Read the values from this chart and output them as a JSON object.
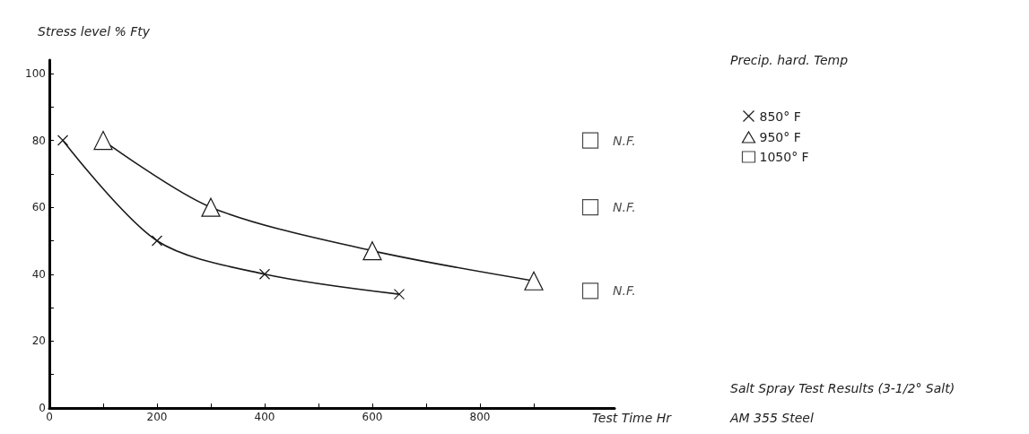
{
  "chart_data": {
    "type": "line",
    "ylabel": "Stress level % Fty",
    "xlabel": "Test Time Hr",
    "legend_title": "Precip. hard. Temp",
    "legend": "top right",
    "grid": false,
    "line_style": "solid",
    "annotations": [
      "Salt Spray Test Results (3-1/2° Salt)",
      "AM 355 Steel"
    ],
    "xlim": [
      0,
      1050
    ],
    "xticks": [
      0,
      {
        "value": 100,
        "label": null
      },
      200,
      {
        "value": 300,
        "label": null
      },
      400,
      {
        "value": 500,
        "label": null
      },
      600,
      {
        "value": 700,
        "label": null
      },
      800,
      {
        "value": 900,
        "label": null
      }
    ],
    "ylim": [
      0,
      104
    ],
    "yticks": [
      0,
      {
        "value": 10,
        "label": null
      },
      20,
      {
        "value": 30,
        "label": null
      },
      40,
      {
        "value": 50,
        "label": null
      },
      60,
      {
        "value": 70,
        "label": null
      },
      80,
      {
        "value": 90,
        "label": null
      },
      100
    ],
    "series": [
      {
        "name": "850° F",
        "color": "#1a1a1a",
        "marker": "cross",
        "x": [
          25,
          200,
          400,
          650
        ],
        "values": [
          80,
          50,
          40,
          34
        ]
      },
      {
        "name": "950° F",
        "color": "#1a1a1a",
        "marker": "triangle",
        "x": [
          100,
          300,
          600,
          900
        ],
        "values": [
          80,
          60,
          47,
          38
        ]
      },
      {
        "name": "1050° F",
        "type": "scatter",
        "color": "#1a1a1a",
        "marker": "square",
        "x": [
          1005,
          1005,
          1005
        ],
        "values": [
          80,
          60,
          35
        ],
        "value_labels": [
          "N.F.",
          "N.F.",
          "N.F."
        ]
      }
    ]
  }
}
